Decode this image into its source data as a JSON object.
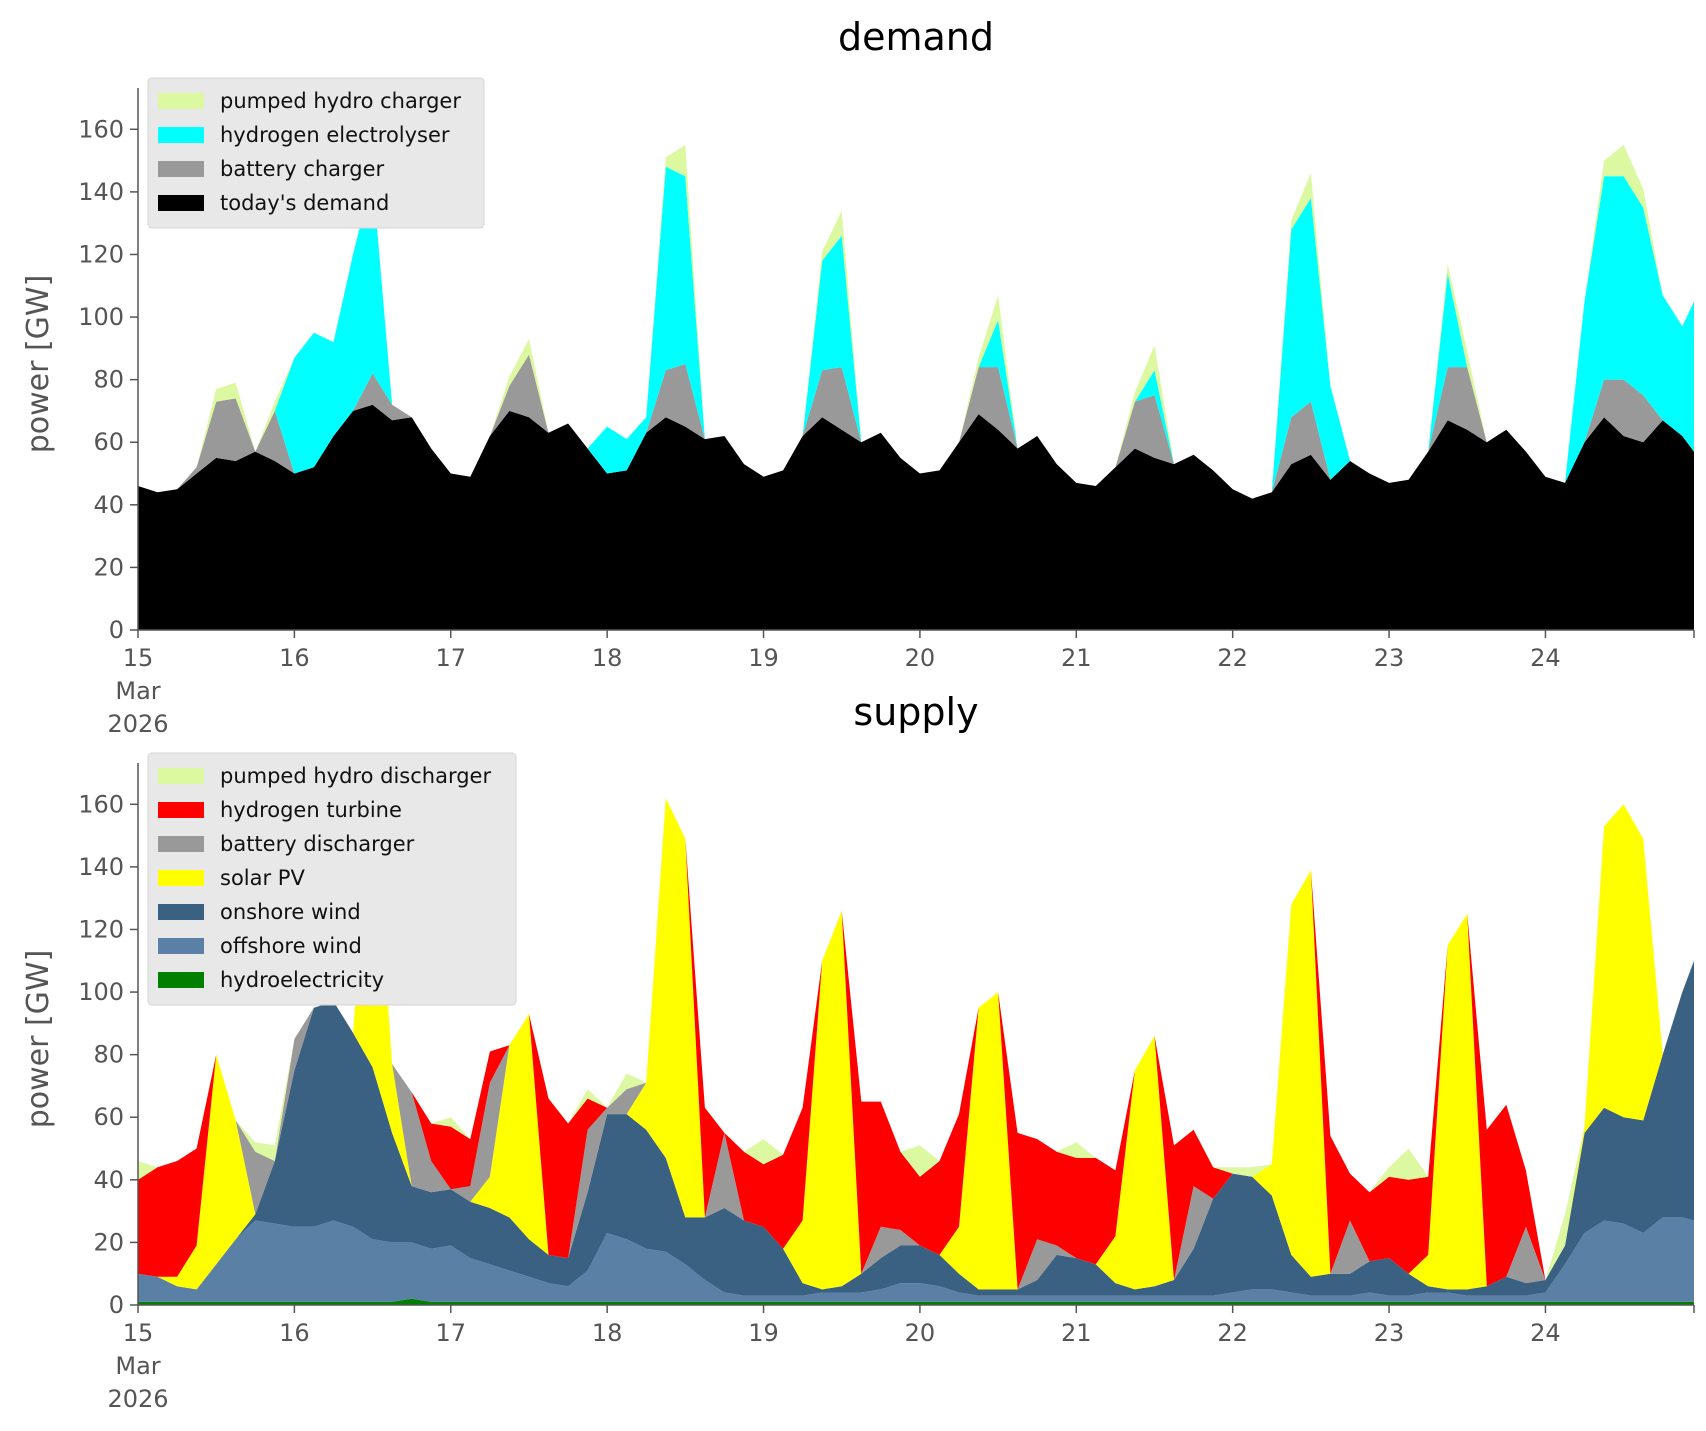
{
  "chart_data": [
    {
      "type": "area",
      "stacked": true,
      "title": "demand",
      "ylabel": "power [GW]",
      "ylim": [
        0,
        170
      ],
      "yticks": [
        0,
        20,
        40,
        60,
        80,
        100,
        120,
        140,
        160
      ],
      "xlim": [
        15,
        24.95
      ],
      "xticks": [
        "15",
        "16",
        "17",
        "18",
        "19",
        "20",
        "21",
        "22",
        "23",
        "24"
      ],
      "x_sublabel": [
        "Mar",
        "2026"
      ],
      "grid": false,
      "legend": "top-left",
      "x": [
        15.0,
        15.125,
        15.25,
        15.375,
        15.5,
        15.625,
        15.75,
        15.875,
        16.0,
        16.125,
        16.25,
        16.375,
        16.5,
        16.625,
        16.75,
        16.875,
        17.0,
        17.125,
        17.25,
        17.375,
        17.5,
        17.625,
        17.75,
        17.875,
        18.0,
        18.125,
        18.25,
        18.375,
        18.5,
        18.625,
        18.75,
        18.875,
        19.0,
        19.125,
        19.25,
        19.375,
        19.5,
        19.625,
        19.75,
        19.875,
        20.0,
        20.125,
        20.25,
        20.375,
        20.5,
        20.625,
        20.75,
        20.875,
        21.0,
        21.125,
        21.25,
        21.375,
        21.5,
        21.625,
        21.75,
        21.875,
        22.0,
        22.125,
        22.25,
        22.375,
        22.5,
        22.625,
        22.75,
        22.875,
        23.0,
        23.125,
        23.25,
        23.375,
        23.5,
        23.625,
        23.75,
        23.875,
        24.0,
        24.125,
        24.25,
        24.375,
        24.5,
        24.625,
        24.75,
        24.875,
        24.95
      ],
      "series": [
        {
          "name": "today's demand",
          "color": "#000000",
          "values": [
            46,
            44,
            45,
            50,
            55,
            54,
            57,
            54,
            50,
            52,
            62,
            70,
            72,
            67,
            68,
            58,
            50,
            49,
            62,
            70,
            68,
            63,
            66,
            58,
            50,
            51,
            63,
            68,
            65,
            61,
            62,
            53,
            49,
            51,
            62,
            68,
            64,
            60,
            63,
            55,
            50,
            51,
            60,
            69,
            64,
            58,
            62,
            53,
            47,
            46,
            52,
            58,
            55,
            53,
            56,
            51,
            45,
            42,
            44,
            53,
            56,
            48,
            54,
            50,
            47,
            48,
            57,
            67,
            64,
            60,
            64,
            57,
            49,
            47,
            60,
            68,
            62,
            60,
            67,
            62,
            57
          ]
        },
        {
          "name": "battery charger",
          "color": "#999999",
          "values": [
            0,
            0,
            0,
            2,
            18,
            20,
            0,
            16,
            0,
            0,
            0,
            0,
            10,
            5,
            0,
            0,
            0,
            0,
            0,
            8,
            20,
            0,
            0,
            0,
            0,
            0,
            0,
            15,
            20,
            0,
            0,
            0,
            0,
            0,
            0,
            15,
            20,
            0,
            0,
            0,
            0,
            0,
            0,
            15,
            20,
            0,
            0,
            0,
            0,
            0,
            0,
            15,
            20,
            0,
            0,
            0,
            0,
            0,
            0,
            15,
            17,
            0,
            0,
            0,
            0,
            0,
            0,
            17,
            20,
            0,
            0,
            0,
            0,
            0,
            0,
            12,
            18,
            15,
            0,
            0,
            0
          ]
        },
        {
          "name": "hydrogen electrolyser",
          "color": "#00ffff",
          "values": [
            0,
            0,
            0,
            0,
            0,
            0,
            0,
            0,
            37,
            43,
            30,
            50,
            63,
            0,
            0,
            0,
            0,
            0,
            0,
            0,
            0,
            0,
            0,
            0,
            15,
            10,
            5,
            65,
            60,
            0,
            0,
            0,
            0,
            0,
            0,
            35,
            42,
            0,
            0,
            0,
            0,
            0,
            0,
            0,
            15,
            0,
            0,
            0,
            0,
            0,
            0,
            0,
            8,
            0,
            0,
            0,
            0,
            0,
            0,
            60,
            65,
            30,
            0,
            0,
            0,
            0,
            0,
            30,
            0,
            0,
            0,
            0,
            0,
            0,
            45,
            65,
            65,
            60,
            40,
            35,
            48
          ]
        },
        {
          "name": "pumped hydro charger",
          "color": "#dcf8a0",
          "values": [
            0,
            0,
            0,
            0,
            4,
            5,
            0,
            3,
            0,
            0,
            0,
            0,
            0,
            0,
            0,
            0,
            0,
            0,
            0,
            3,
            5,
            0,
            0,
            0,
            0,
            0,
            0,
            3,
            10,
            0,
            0,
            0,
            0,
            0,
            0,
            3,
            8,
            0,
            0,
            0,
            0,
            0,
            0,
            3,
            8,
            0,
            0,
            0,
            0,
            0,
            0,
            3,
            8,
            0,
            0,
            0,
            0,
            0,
            0,
            3,
            8,
            0,
            0,
            0,
            0,
            0,
            0,
            3,
            5,
            0,
            0,
            0,
            0,
            0,
            0,
            5,
            10,
            6,
            0,
            0,
            0
          ]
        }
      ]
    },
    {
      "type": "area",
      "stacked": true,
      "title": "supply",
      "ylabel": "power [GW]",
      "ylim": [
        0,
        170
      ],
      "yticks": [
        0,
        20,
        40,
        60,
        80,
        100,
        120,
        140,
        160
      ],
      "xlim": [
        15,
        24.95
      ],
      "xticks": [
        "15",
        "16",
        "17",
        "18",
        "19",
        "20",
        "21",
        "22",
        "23",
        "24"
      ],
      "x_sublabel": [
        "Mar",
        "2026"
      ],
      "grid": false,
      "legend": "top-left",
      "x": [
        15.0,
        15.125,
        15.25,
        15.375,
        15.5,
        15.625,
        15.75,
        15.875,
        16.0,
        16.125,
        16.25,
        16.375,
        16.5,
        16.625,
        16.75,
        16.875,
        17.0,
        17.125,
        17.25,
        17.375,
        17.5,
        17.625,
        17.75,
        17.875,
        18.0,
        18.125,
        18.25,
        18.375,
        18.5,
        18.625,
        18.75,
        18.875,
        19.0,
        19.125,
        19.25,
        19.375,
        19.5,
        19.625,
        19.75,
        19.875,
        20.0,
        20.125,
        20.25,
        20.375,
        20.5,
        20.625,
        20.75,
        20.875,
        21.0,
        21.125,
        21.25,
        21.375,
        21.5,
        21.625,
        21.75,
        21.875,
        22.0,
        22.125,
        22.25,
        22.375,
        22.5,
        22.625,
        22.75,
        22.875,
        23.0,
        23.125,
        23.25,
        23.375,
        23.5,
        23.625,
        23.75,
        23.875,
        24.0,
        24.125,
        24.25,
        24.375,
        24.5,
        24.625,
        24.75,
        24.875,
        24.95
      ],
      "series": [
        {
          "name": "hydroelectricity",
          "color": "#008000",
          "values": [
            1,
            1,
            1,
            1,
            1,
            1,
            1,
            1,
            1,
            1,
            1,
            1,
            1,
            1,
            2,
            1,
            1,
            1,
            1,
            1,
            1,
            1,
            1,
            1,
            1,
            1,
            1,
            1,
            1,
            1,
            1,
            1,
            1,
            1,
            1,
            1,
            1,
            1,
            1,
            1,
            1,
            1,
            1,
            1,
            1,
            1,
            1,
            1,
            1,
            1,
            1,
            1,
            1,
            1,
            1,
            1,
            1,
            1,
            1,
            1,
            1,
            1,
            1,
            1,
            1,
            1,
            1,
            1,
            1,
            1,
            1,
            1,
            1,
            1,
            1,
            1,
            1,
            1,
            1,
            1,
            1
          ]
        },
        {
          "name": "offshore wind",
          "color": "#5b80a6",
          "values": [
            9,
            8,
            5,
            4,
            12,
            20,
            26,
            25,
            24,
            24,
            26,
            24,
            20,
            19,
            18,
            17,
            18,
            14,
            12,
            10,
            8,
            6,
            5,
            10,
            22,
            20,
            17,
            16,
            12,
            7,
            3,
            2,
            2,
            2,
            2,
            3,
            3,
            3,
            4,
            6,
            6,
            5,
            3,
            2,
            2,
            2,
            2,
            2,
            2,
            2,
            2,
            2,
            2,
            2,
            2,
            2,
            3,
            4,
            4,
            3,
            2,
            2,
            2,
            3,
            2,
            2,
            3,
            3,
            2,
            2,
            2,
            2,
            3,
            12,
            22,
            26,
            25,
            22,
            27,
            27,
            26
          ]
        },
        {
          "name": "onshore wind",
          "color": "#3b6182",
          "values": [
            0,
            0,
            0,
            0,
            0,
            0,
            2,
            20,
            50,
            70,
            70,
            62,
            55,
            35,
            18,
            18,
            18,
            18,
            18,
            17,
            12,
            9,
            9,
            25,
            38,
            40,
            38,
            30,
            15,
            20,
            27,
            24,
            22,
            15,
            4,
            1,
            2,
            6,
            10,
            12,
            12,
            10,
            6,
            2,
            2,
            2,
            5,
            13,
            12,
            10,
            4,
            2,
            3,
            5,
            15,
            31,
            38,
            36,
            30,
            12,
            6,
            7,
            7,
            10,
            12,
            7,
            2,
            1,
            2,
            3,
            6,
            4,
            4,
            6,
            32,
            36,
            34,
            36,
            52,
            72,
            83
          ]
        },
        {
          "name": "solar PV",
          "color": "#ffff00",
          "values": [
            0,
            0,
            3,
            14,
            67,
            38,
            0,
            0,
            0,
            0,
            0,
            0,
            92,
            22,
            0,
            0,
            0,
            0,
            10,
            55,
            72,
            0,
            0,
            0,
            0,
            0,
            15,
            115,
            121,
            0,
            0,
            0,
            0,
            0,
            20,
            105,
            120,
            0,
            0,
            0,
            0,
            0,
            15,
            90,
            95,
            0,
            0,
            0,
            0,
            0,
            15,
            70,
            80,
            0,
            0,
            0,
            0,
            0,
            10,
            112,
            130,
            0,
            0,
            0,
            0,
            0,
            10,
            110,
            120,
            0,
            0,
            0,
            0,
            0,
            2,
            90,
            100,
            90,
            0,
            0,
            0
          ]
        },
        {
          "name": "battery discharger",
          "color": "#999999",
          "values": [
            0,
            0,
            0,
            0,
            0,
            0,
            20,
            0,
            10,
            0,
            0,
            0,
            0,
            0,
            30,
            10,
            0,
            5,
            30,
            0,
            0,
            0,
            0,
            20,
            2,
            8,
            0,
            0,
            0,
            0,
            24,
            0,
            0,
            0,
            0,
            0,
            0,
            0,
            10,
            5,
            0,
            0,
            0,
            0,
            0,
            0,
            13,
            3,
            0,
            0,
            0,
            0,
            0,
            0,
            20,
            0,
            0,
            0,
            0,
            0,
            0,
            0,
            17,
            0,
            0,
            0,
            0,
            0,
            0,
            0,
            0,
            18,
            0,
            0,
            0,
            0,
            0,
            0,
            0,
            0,
            0
          ]
        },
        {
          "name": "hydrogen turbine",
          "color": "#ff0000",
          "values": [
            30,
            35,
            37,
            31,
            0,
            0,
            0,
            0,
            0,
            0,
            0,
            0,
            0,
            0,
            0,
            12,
            20,
            15,
            10,
            0,
            0,
            50,
            43,
            10,
            0,
            0,
            0,
            0,
            0,
            35,
            0,
            22,
            20,
            30,
            36,
            0,
            0,
            55,
            40,
            25,
            22,
            30,
            36,
            0,
            0,
            50,
            32,
            30,
            32,
            34,
            21,
            0,
            0,
            43,
            18,
            10,
            0,
            0,
            0,
            0,
            0,
            44,
            15,
            22,
            26,
            30,
            25,
            0,
            0,
            50,
            55,
            18,
            0,
            0,
            0,
            0,
            0,
            0,
            0,
            0,
            0
          ]
        },
        {
          "name": "pumped hydro discharger",
          "color": "#dcf8a0",
          "values": [
            6,
            0,
            0,
            0,
            0,
            0,
            3,
            5,
            0,
            0,
            0,
            0,
            0,
            0,
            0,
            0,
            3,
            0,
            0,
            0,
            0,
            0,
            0,
            3,
            0,
            5,
            0,
            0,
            0,
            0,
            0,
            0,
            8,
            0,
            0,
            0,
            0,
            0,
            0,
            0,
            10,
            0,
            0,
            0,
            0,
            0,
            0,
            0,
            5,
            0,
            0,
            0,
            0,
            0,
            0,
            0,
            2,
            3,
            0,
            0,
            0,
            0,
            0,
            0,
            3,
            10,
            0,
            0,
            0,
            0,
            0,
            0,
            0,
            10,
            0,
            0,
            0,
            0,
            0,
            0,
            0
          ]
        }
      ]
    }
  ]
}
